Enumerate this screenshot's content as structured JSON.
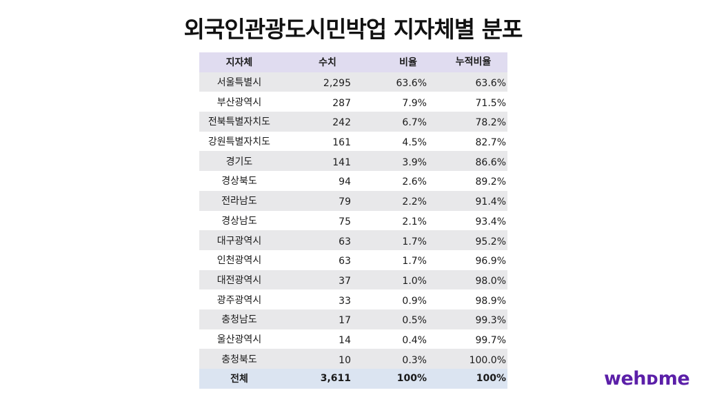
{
  "title": "외국인관광도시민박업 지자체별 분포",
  "table": {
    "headers": [
      "지자체",
      "수치",
      "비율",
      "누적비율"
    ],
    "rows": [
      {
        "region": "서울특별시",
        "count": "2,295",
        "ratio": "63.6%",
        "cumulative": "63.6%"
      },
      {
        "region": "부산광역시",
        "count": "287",
        "ratio": "7.9%",
        "cumulative": "71.5%"
      },
      {
        "region": "전북특별자치도",
        "count": "242",
        "ratio": "6.7%",
        "cumulative": "78.2%"
      },
      {
        "region": "강원특별자치도",
        "count": "161",
        "ratio": "4.5%",
        "cumulative": "82.7%"
      },
      {
        "region": "경기도",
        "count": "141",
        "ratio": "3.9%",
        "cumulative": "86.6%"
      },
      {
        "region": "경상북도",
        "count": "94",
        "ratio": "2.6%",
        "cumulative": "89.2%"
      },
      {
        "region": "전라남도",
        "count": "79",
        "ratio": "2.2%",
        "cumulative": "91.4%"
      },
      {
        "region": "경상남도",
        "count": "75",
        "ratio": "2.1%",
        "cumulative": "93.4%"
      },
      {
        "region": "대구광역시",
        "count": "63",
        "ratio": "1.7%",
        "cumulative": "95.2%"
      },
      {
        "region": "인천광역시",
        "count": "63",
        "ratio": "1.7%",
        "cumulative": "96.9%"
      },
      {
        "region": "대전광역시",
        "count": "37",
        "ratio": "1.0%",
        "cumulative": "98.0%"
      },
      {
        "region": "광주광역시",
        "count": "33",
        "ratio": "0.9%",
        "cumulative": "98.9%"
      },
      {
        "region": "충청남도",
        "count": "17",
        "ratio": "0.5%",
        "cumulative": "99.3%"
      },
      {
        "region": "울산광역시",
        "count": "14",
        "ratio": "0.4%",
        "cumulative": "99.7%"
      },
      {
        "region": "충청북도",
        "count": "10",
        "ratio": "0.3%",
        "cumulative": "100.0%"
      }
    ],
    "total": {
      "region": "전체",
      "count": "3,611",
      "ratio": "100%",
      "cumulative": "100%"
    }
  },
  "logo": {
    "text": "wehome",
    "display": "wehᴅme",
    "color": "#5b1fa8"
  },
  "colors": {
    "header_bg": "#e0dcf0",
    "stripe_bg": "#e8e8ea",
    "total_bg": "#dbe4f1"
  }
}
